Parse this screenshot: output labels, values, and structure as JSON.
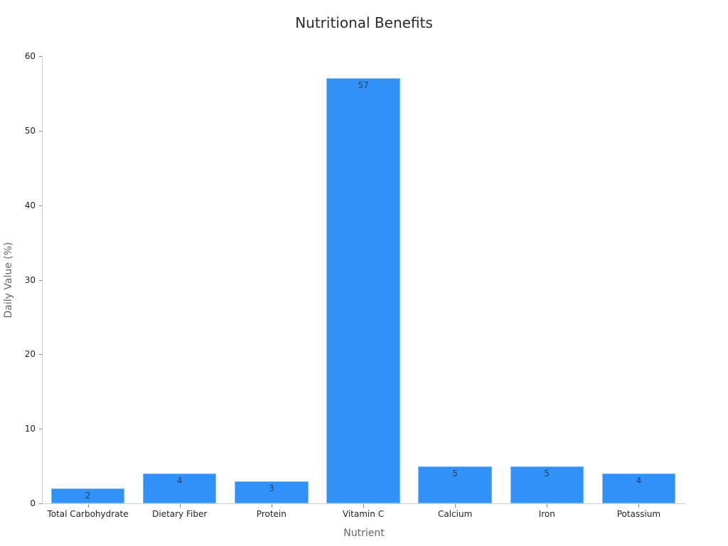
{
  "chart_data": {
    "type": "bar",
    "title": "Nutritional Benefits",
    "xlabel": "Nutrient",
    "ylabel": "Daily Value (%)",
    "categories": [
      "Total Carbohydrate",
      "Dietary Fiber",
      "Protein",
      "Vitamin C",
      "Calcium",
      "Iron",
      "Potassium"
    ],
    "values": [
      2,
      4,
      3,
      57,
      5,
      5,
      4
    ],
    "data_labels": [
      "2",
      "4",
      "3",
      "57",
      "5",
      "5",
      "4"
    ],
    "ylim": [
      0,
      60
    ],
    "yticks": [
      0,
      10,
      20,
      30,
      40,
      50,
      60
    ],
    "ytick_labels": [
      "0",
      "10",
      "20",
      "30",
      "40",
      "50",
      "60"
    ],
    "grid": false,
    "legend": null,
    "colors": {
      "bar": "#3092f9",
      "bar_edge": "#7fbaf8",
      "label": "#2d3e5a"
    }
  }
}
